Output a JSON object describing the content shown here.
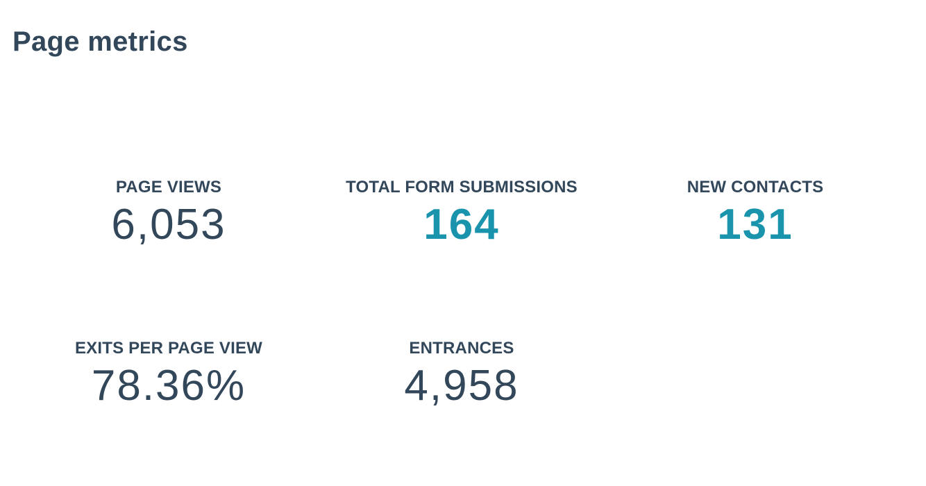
{
  "header": {
    "title": "Page metrics"
  },
  "metrics": [
    {
      "label": "PAGE VIEWS",
      "value": "6,053",
      "color": "#33475b",
      "emphasis": false
    },
    {
      "label": "TOTAL FORM SUBMISSIONS",
      "value": "164",
      "color": "#1a94ad",
      "emphasis": true
    },
    {
      "label": "NEW CONTACTS",
      "value": "131",
      "color": "#1a94ad",
      "emphasis": true
    },
    {
      "label": "EXITS PER PAGE VIEW",
      "value": "78.36%",
      "color": "#33475b",
      "emphasis": false
    },
    {
      "label": "ENTRANCES",
      "value": "4,958",
      "color": "#33475b",
      "emphasis": false
    }
  ]
}
